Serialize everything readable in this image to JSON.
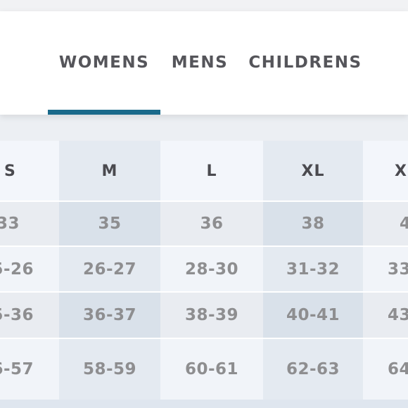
{
  "tabs": [
    {
      "label": "WOMENS",
      "active": true
    },
    {
      "label": "MENS",
      "active": false
    },
    {
      "label": "CHILDRENS",
      "active": false
    }
  ],
  "colors": {
    "accent": "#1a6a8b",
    "header_text": "#4a4a4f",
    "value_text": "#8e8e90",
    "tab_text": "#55555a"
  },
  "size_table": {
    "headers": [
      "S",
      "M",
      "L",
      "XL",
      "X"
    ],
    "rows": [
      [
        "33",
        "35",
        "36",
        "38",
        "4"
      ],
      [
        "5-26",
        "26-27",
        "28-30",
        "31-32",
        "33"
      ],
      [
        "5-36",
        "36-37",
        "38-39",
        "40-41",
        "43"
      ],
      [
        "6-57",
        "58-59",
        "60-61",
        "62-63",
        "64"
      ]
    ]
  }
}
